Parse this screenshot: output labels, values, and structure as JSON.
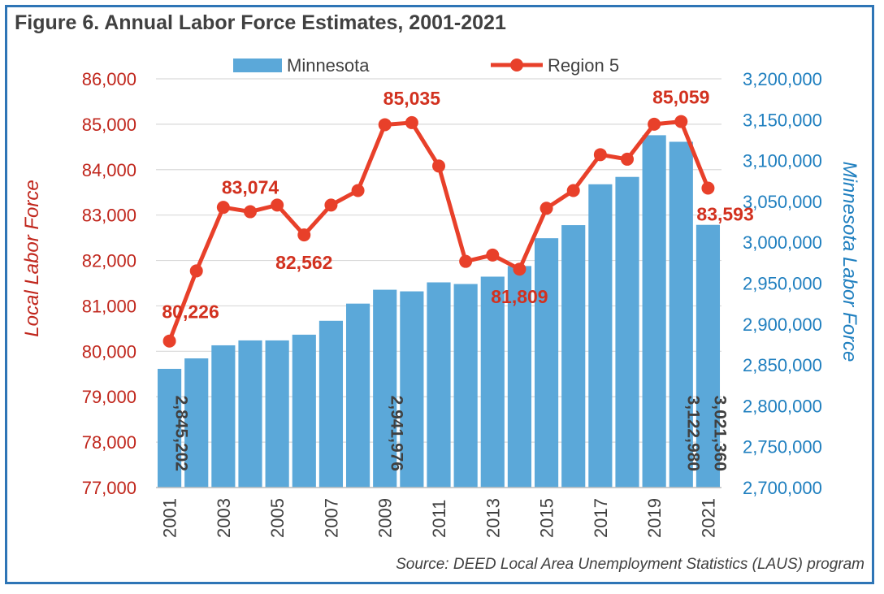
{
  "chart_data": {
    "type": "bar+line",
    "title": "Figure 6. Annual Labor Force Estimates, 2001-2021",
    "source": "Source: DEED Local Area Unemployment Statistics (LAUS) program",
    "x": [
      2001,
      2002,
      2003,
      2004,
      2005,
      2006,
      2007,
      2008,
      2009,
      2010,
      2011,
      2012,
      2013,
      2014,
      2015,
      2016,
      2017,
      2018,
      2019,
      2020,
      2021
    ],
    "x_tick_labels": [
      "2001",
      "2003",
      "2005",
      "2007",
      "2009",
      "2011",
      "2013",
      "2015",
      "2017",
      "2019",
      "2021"
    ],
    "series": [
      {
        "name": "Minnesota",
        "type": "bar",
        "axis": "right",
        "color": "#5ba8d9",
        "values": [
          2845202,
          2858000,
          2874000,
          2880000,
          2880000,
          2887000,
          2904000,
          2925000,
          2941976,
          2940000,
          2951000,
          2949000,
          2958000,
          2971000,
          3005000,
          3021000,
          3071000,
          3080000,
          3131000,
          3122980,
          3021360
        ],
        "data_labels": [
          {
            "index": 0,
            "text": "2,845,202"
          },
          {
            "index": 8,
            "text": "2,941,976"
          },
          {
            "index": 19,
            "text": "3,122,980"
          },
          {
            "index": 20,
            "text": "3,021,360"
          }
        ]
      },
      {
        "name": "Region 5",
        "type": "line",
        "axis": "left",
        "color": "#e8402a",
        "values": [
          80226,
          81770,
          83170,
          83074,
          83220,
          82562,
          83220,
          83540,
          84990,
          85035,
          84080,
          81980,
          82120,
          81809,
          83150,
          83540,
          84330,
          84230,
          85000,
          85059,
          83593
        ],
        "data_labels": [
          {
            "index": 0,
            "text": "80,226",
            "pos": "above"
          },
          {
            "index": 3,
            "text": "83,074",
            "pos": "above"
          },
          {
            "index": 5,
            "text": "82,562",
            "pos": "below"
          },
          {
            "index": 9,
            "text": "85,035",
            "pos": "above"
          },
          {
            "index": 13,
            "text": "81,809",
            "pos": "below"
          },
          {
            "index": 19,
            "text": "85,059",
            "pos": "above"
          },
          {
            "index": 20,
            "text": "83,593",
            "pos": "right"
          }
        ]
      }
    ],
    "y_left": {
      "label": "Local Labor Force",
      "min": 77000,
      "max": 86000,
      "step": 1000,
      "tick_labels": [
        "77,000",
        "78,000",
        "79,000",
        "80,000",
        "81,000",
        "82,000",
        "83,000",
        "84,000",
        "85,000",
        "86,000"
      ]
    },
    "y_right": {
      "label": "Minnesota Labor Force",
      "min": 2700000,
      "max": 3200000,
      "step": 50000,
      "tick_labels": [
        "2,700,000",
        "2,750,000",
        "2,800,000",
        "2,850,000",
        "2,900,000",
        "2,950,000",
        "3,000,000",
        "3,050,000",
        "3,100,000",
        "3,150,000",
        "3,200,000"
      ]
    },
    "legend_position": "top",
    "grid": true,
    "colors": {
      "left_axis": "#c0261c",
      "right_axis": "#1f7fbf",
      "grid": "#d9d9d9",
      "text": "#404040"
    }
  }
}
